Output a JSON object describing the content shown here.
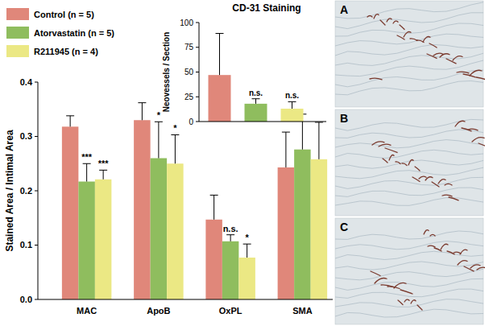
{
  "panels": {
    "labels": [
      "A",
      "B",
      "C"
    ]
  },
  "chart_data": [
    {
      "type": "bar",
      "y_label": "Stained Area / Intimal Area",
      "categories": [
        "MAC",
        "ApoB",
        "OxPL",
        "SMA"
      ],
      "series": [
        {
          "name": "Control (n = 5)",
          "color": "#e0877a",
          "values": [
            0.318,
            0.33,
            0.147,
            0.243
          ],
          "errors": [
            0.02,
            0.032,
            0.045,
            0.065
          ]
        },
        {
          "name": "Atorvastatin (n = 5)",
          "color": "#8fbd5e",
          "values": [
            0.217,
            0.26,
            0.107,
            0.276
          ],
          "errors": [
            0.033,
            0.067,
            0.012,
            0.065
          ],
          "annotations": [
            "***",
            "*",
            "n.s.",
            null
          ]
        },
        {
          "name": "R211945 (n = 4)",
          "color": "#ebe884",
          "values": [
            0.221,
            0.25,
            0.077,
            0.258
          ],
          "errors": [
            0.017,
            0.053,
            0.025,
            0.068
          ],
          "annotations": [
            "***",
            "*",
            "*",
            null
          ]
        }
      ],
      "ylim": [
        0,
        0.4
      ],
      "yticks": [
        {
          "value": 0,
          "label": "0.0"
        },
        0.1,
        0.2,
        0.3,
        0.4
      ],
      "legend": "upper left",
      "grid": false
    },
    {
      "type": "bar",
      "title": "CD-31 Staining",
      "y_label": "Neovessels / Section",
      "categories": [
        null,
        null,
        null
      ],
      "values": [
        47,
        18,
        13
      ],
      "errors": [
        42,
        5,
        7
      ],
      "colors": [
        "#e0877a",
        "#8fbd5e",
        "#ebe884"
      ],
      "annotations": [
        null,
        "n.s.",
        "n.s."
      ],
      "ylim": [
        0,
        100
      ],
      "yticks": [
        0,
        25,
        50,
        75,
        100
      ],
      "tick_labels": "y",
      "grid": false
    }
  ]
}
